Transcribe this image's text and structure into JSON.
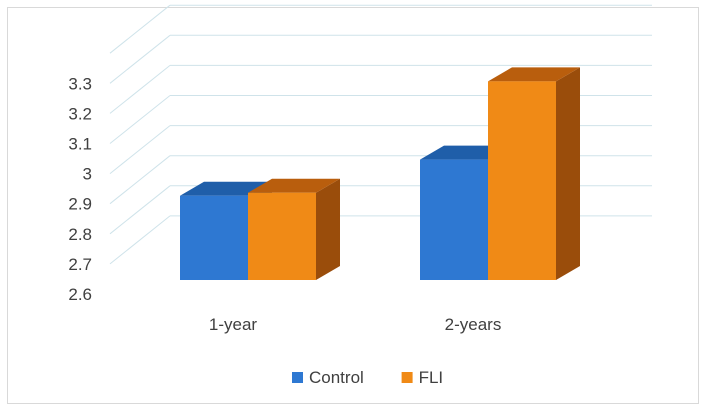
{
  "chart_data": {
    "type": "bar",
    "categories": [
      "1-year",
      "2-years"
    ],
    "series": [
      {
        "name": "Control",
        "values": [
          2.88,
          3.0
        ]
      },
      {
        "name": "FLI",
        "values": [
          2.89,
          3.26
        ]
      }
    ],
    "ylim": [
      2.6,
      3.3
    ],
    "yticks": [
      "2.6",
      "2.7",
      "2.8",
      "2.9",
      "3",
      "3.1",
      "3.2",
      "3.3"
    ],
    "grid": true,
    "legend_position": "bottom",
    "style": "3d-columns",
    "colors": {
      "Control": {
        "front": "#2e78d2",
        "top": "#1f5ea9",
        "side": "#1a4f8c"
      },
      "FLI": {
        "front": "#f08a16",
        "top": "#b95e0d",
        "side": "#9a4d0b"
      },
      "grid": "#cfe3ea",
      "text": "#404040"
    }
  }
}
